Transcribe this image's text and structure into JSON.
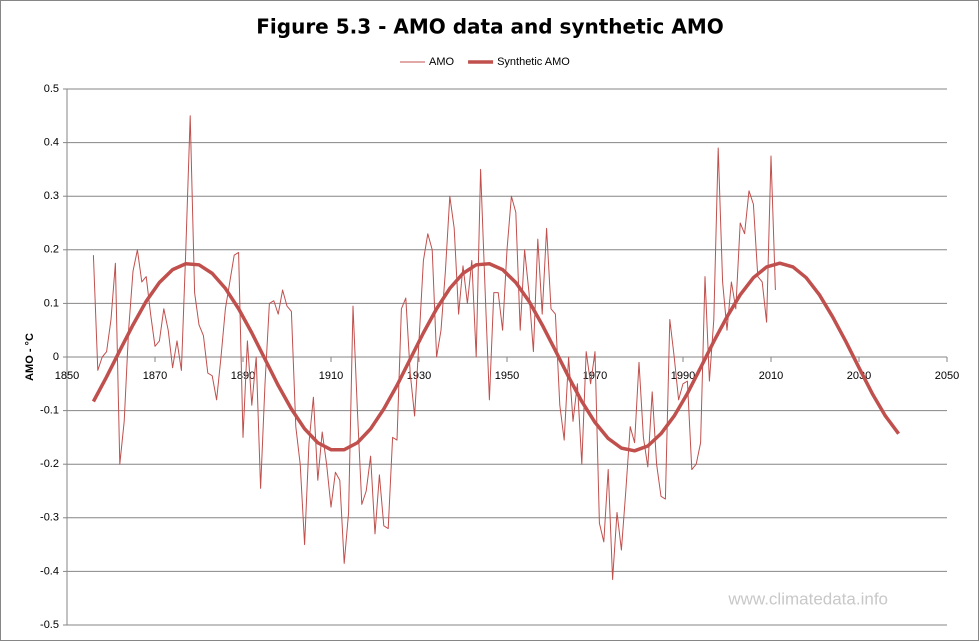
{
  "chart_data": {
    "type": "line",
    "title": "Figure 5.3 - AMO data and synthetic AMO",
    "y_label": "AMO - °C",
    "watermark": "www.climatedata.info",
    "xlim": [
      1850,
      2050
    ],
    "xticks": [
      1850,
      1870,
      1890,
      1910,
      1930,
      1950,
      1970,
      1990,
      2010,
      2030,
      2050
    ],
    "ylim": [
      -0.5,
      0.5
    ],
    "yticks": [
      -0.5,
      -0.4,
      -0.3,
      -0.2,
      -0.1,
      0,
      0.1,
      0.2,
      0.3,
      0.4,
      0.5
    ],
    "grid": true,
    "legend": "top",
    "series": [
      {
        "name": "AMO",
        "color": "#c0504d",
        "width": 1,
        "x": [
          1856,
          1857,
          1858,
          1859,
          1860,
          1861,
          1862,
          1863,
          1864,
          1865,
          1866,
          1867,
          1868,
          1869,
          1870,
          1871,
          1872,
          1873,
          1874,
          1875,
          1876,
          1877,
          1878,
          1879,
          1880,
          1881,
          1882,
          1883,
          1884,
          1885,
          1886,
          1887,
          1888,
          1889,
          1890,
          1891,
          1892,
          1893,
          1894,
          1895,
          1896,
          1897,
          1898,
          1899,
          1900,
          1901,
          1902,
          1903,
          1904,
          1905,
          1906,
          1907,
          1908,
          1909,
          1910,
          1911,
          1912,
          1913,
          1914,
          1915,
          1916,
          1917,
          1918,
          1919,
          1920,
          1921,
          1922,
          1923,
          1924,
          1925,
          1926,
          1927,
          1928,
          1929,
          1930,
          1931,
          1932,
          1933,
          1934,
          1935,
          1936,
          1937,
          1938,
          1939,
          1940,
          1941,
          1942,
          1943,
          1944,
          1945,
          1946,
          1947,
          1948,
          1949,
          1950,
          1951,
          1952,
          1953,
          1954,
          1955,
          1956,
          1957,
          1958,
          1959,
          1960,
          1961,
          1962,
          1963,
          1964,
          1965,
          1966,
          1967,
          1968,
          1969,
          1970,
          1971,
          1972,
          1973,
          1974,
          1975,
          1976,
          1977,
          1978,
          1979,
          1980,
          1981,
          1982,
          1983,
          1984,
          1985,
          1986,
          1987,
          1988,
          1989,
          1990,
          1991,
          1992,
          1993,
          1994,
          1995,
          1996,
          1997,
          1998,
          1999,
          2000,
          2001,
          2002,
          2003,
          2004,
          2005,
          2006,
          2007,
          2008,
          2009,
          2010,
          2011
        ],
        "values": [
          0.19,
          -0.025,
          0.0,
          0.01,
          0.07,
          0.175,
          -0.2,
          -0.12,
          0.05,
          0.16,
          0.2,
          0.14,
          0.15,
          0.08,
          0.02,
          0.03,
          0.09,
          0.05,
          -0.02,
          0.03,
          -0.025,
          0.2,
          0.45,
          0.12,
          0.06,
          0.04,
          -0.03,
          -0.035,
          -0.08,
          0.0,
          0.09,
          0.14,
          0.19,
          0.195,
          -0.15,
          0.03,
          -0.09,
          0.0,
          -0.245,
          -0.05,
          0.1,
          0.105,
          0.08,
          0.125,
          0.095,
          0.085,
          -0.13,
          -0.2,
          -0.35,
          -0.16,
          -0.075,
          -0.23,
          -0.14,
          -0.2,
          -0.28,
          -0.215,
          -0.23,
          -0.385,
          -0.29,
          0.095,
          -0.1,
          -0.275,
          -0.25,
          -0.185,
          -0.33,
          -0.22,
          -0.315,
          -0.32,
          -0.15,
          -0.155,
          0.09,
          0.11,
          -0.03,
          -0.11,
          0.03,
          0.18,
          0.23,
          0.2,
          0.0,
          0.05,
          0.16,
          0.3,
          0.24,
          0.08,
          0.17,
          0.1,
          0.18,
          0.0,
          0.35,
          0.13,
          -0.08,
          0.12,
          0.12,
          0.05,
          0.2,
          0.3,
          0.27,
          0.05,
          0.2,
          0.12,
          0.01,
          0.22,
          0.08,
          0.24,
          0.09,
          0.08,
          -0.09,
          -0.155,
          0.0,
          -0.12,
          -0.05,
          -0.2,
          0.01,
          -0.05,
          0.01,
          -0.31,
          -0.345,
          -0.21,
          -0.415,
          -0.29,
          -0.36,
          -0.25,
          -0.13,
          -0.16,
          -0.01,
          -0.15,
          -0.205,
          -0.065,
          -0.2,
          -0.26,
          -0.265,
          0.07,
          0.0,
          -0.08,
          -0.05,
          -0.045,
          -0.21,
          -0.2,
          -0.16,
          0.15,
          -0.045,
          0.07,
          0.39,
          0.14,
          0.05,
          0.14,
          0.09,
          0.25,
          0.23,
          0.31,
          0.285,
          0.15,
          0.14,
          0.065,
          0.375,
          0.125
        ]
      },
      {
        "name": "Synthetic AMO",
        "color": "#c0504d",
        "width": 3.5,
        "x": [
          1856,
          1859,
          1862,
          1865,
          1868,
          1871,
          1874,
          1877,
          1880,
          1883,
          1886,
          1889,
          1892,
          1895,
          1898,
          1901,
          1904,
          1907,
          1910,
          1913,
          1916,
          1919,
          1922,
          1925,
          1928,
          1931,
          1934,
          1937,
          1940,
          1943,
          1946,
          1949,
          1952,
          1955,
          1958,
          1961,
          1964,
          1967,
          1970,
          1973,
          1976,
          1979,
          1982,
          1985,
          1988,
          1991,
          1994,
          1997,
          2000,
          2003,
          2006,
          2009,
          2012,
          2015,
          2018,
          2021,
          2024,
          2027,
          2030,
          2033,
          2036,
          2039
        ],
        "values": [
          -0.083,
          -0.037,
          0.012,
          0.06,
          0.104,
          0.139,
          0.163,
          0.174,
          0.172,
          0.156,
          0.128,
          0.09,
          0.045,
          -0.004,
          -0.053,
          -0.097,
          -0.134,
          -0.16,
          -0.173,
          -0.173,
          -0.16,
          -0.134,
          -0.097,
          -0.053,
          -0.004,
          0.045,
          0.09,
          0.128,
          0.156,
          0.172,
          0.174,
          0.163,
          0.139,
          0.104,
          0.06,
          0.012,
          -0.037,
          -0.083,
          -0.122,
          -0.152,
          -0.17,
          -0.175,
          -0.166,
          -0.143,
          -0.11,
          -0.068,
          -0.02,
          0.029,
          0.075,
          0.116,
          0.148,
          0.168,
          0.175,
          0.168,
          0.148,
          0.116,
          0.075,
          0.029,
          -0.02,
          -0.068,
          -0.11,
          -0.143
        ]
      }
    ]
  }
}
